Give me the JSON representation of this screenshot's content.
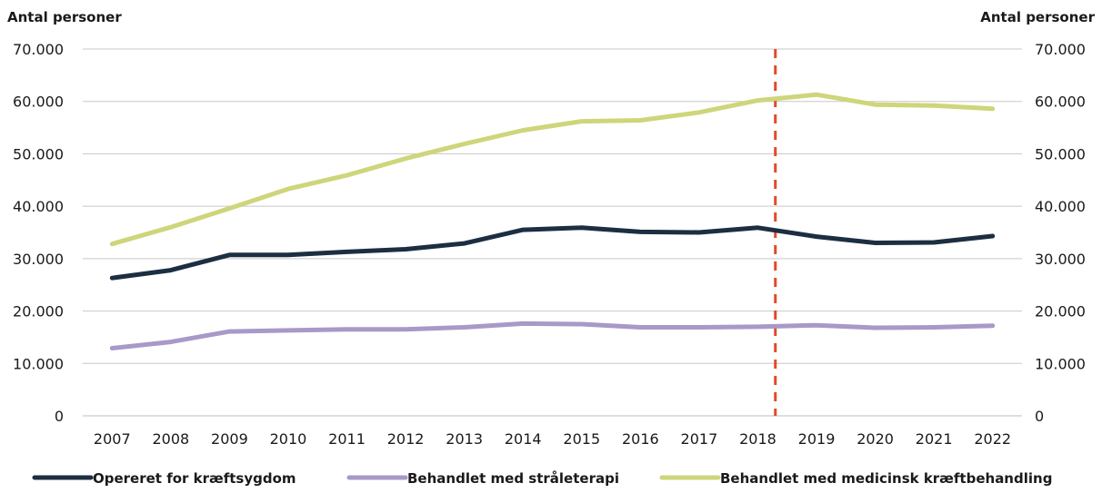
{
  "chart_data": {
    "type": "line",
    "ylabel_left": "Antal personer",
    "ylabel_right": "Antal personer",
    "ylim": [
      0,
      70000
    ],
    "y_ticks": [
      "0",
      "10.000",
      "20.000",
      "30.000",
      "40.000",
      "50.000",
      "60.000",
      "70.000"
    ],
    "x": [
      "2007",
      "2008",
      "2009",
      "2010",
      "2011",
      "2012",
      "2013",
      "2014",
      "2015",
      "2016",
      "2017",
      "2018",
      "2019",
      "2020",
      "2021",
      "2022"
    ],
    "grid": "horizontal",
    "legend_position": "bottom",
    "marker_line": {
      "x_between": [
        "2018",
        "2019"
      ],
      "color": "#E04A2A",
      "style": "dashed"
    },
    "series": [
      {
        "name": "Opereret for kræftsygdom",
        "color": "#1C2E42",
        "values": [
          26300,
          27800,
          30700,
          30700,
          31300,
          31800,
          32900,
          35500,
          35900,
          35100,
          35000,
          35900,
          34200,
          33000,
          33100,
          34300
        ]
      },
      {
        "name": "Behandlet med stråleterapi",
        "color": "#A899C8",
        "values": [
          12900,
          14100,
          16100,
          16300,
          16500,
          16500,
          16900,
          17600,
          17500,
          16900,
          16900,
          17000,
          17300,
          16800,
          16900,
          17200
        ]
      },
      {
        "name": "Behandlet med medicinsk kræftbehandling",
        "color": "#CFD57A",
        "values": [
          32800,
          36000,
          39600,
          43300,
          45900,
          49100,
          51900,
          54500,
          56200,
          56400,
          57900,
          60200,
          61300,
          59400,
          59200,
          58600
        ]
      }
    ]
  }
}
